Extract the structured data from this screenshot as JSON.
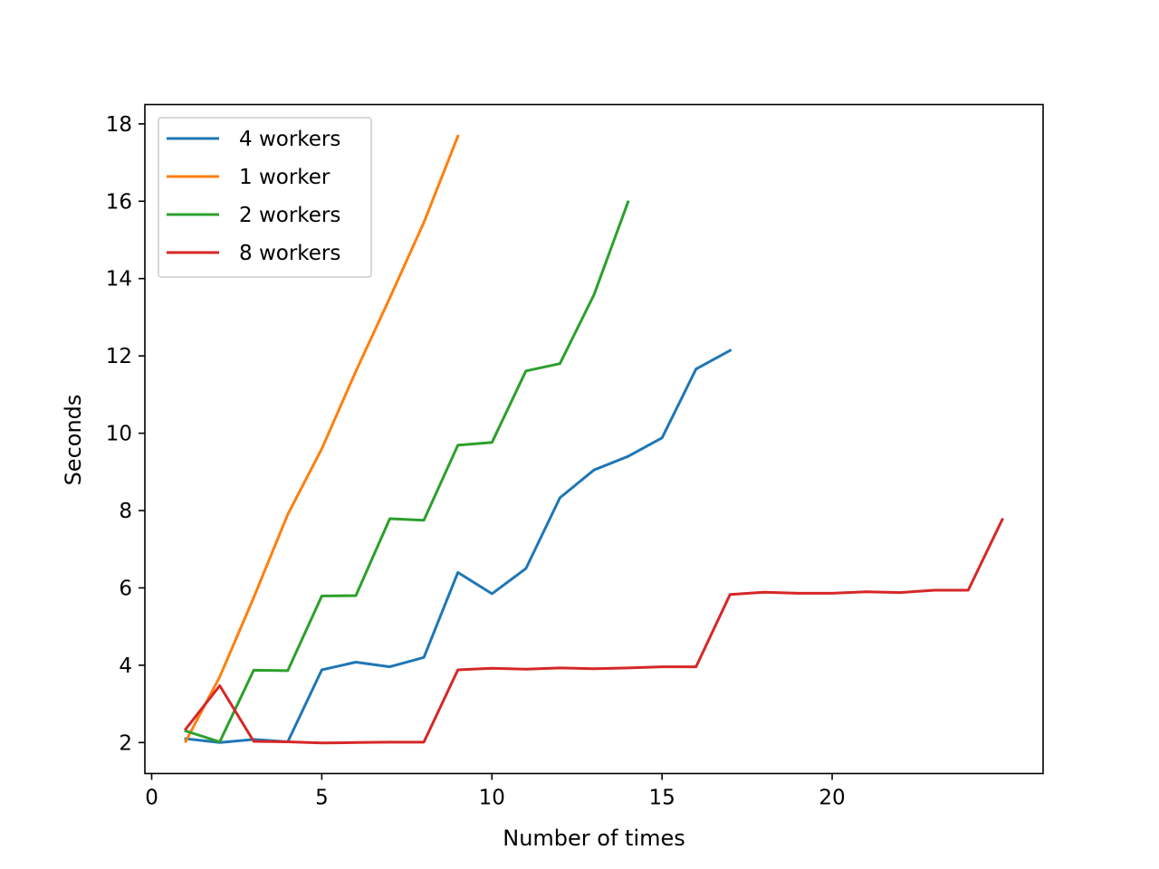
{
  "chart_data": {
    "type": "line",
    "title": "",
    "xlabel": "Number of times",
    "ylabel": "Seconds",
    "xlim": [
      -0.2,
      26.2
    ],
    "ylim": [
      1.2,
      18.5
    ],
    "xticks": [
      0,
      5,
      10,
      15,
      20
    ],
    "yticks": [
      2,
      4,
      6,
      8,
      10,
      12,
      14,
      16,
      18
    ],
    "grid": false,
    "legend_position": "upper-left",
    "series": [
      {
        "name": "4 workers",
        "color": "#1f77b4",
        "x": [
          1,
          2,
          3,
          4,
          5,
          6,
          7,
          8,
          9,
          10,
          11,
          12,
          13,
          14,
          15,
          16,
          17
        ],
        "y": [
          2.1,
          2.0,
          2.08,
          2.02,
          3.88,
          4.08,
          3.96,
          4.2,
          6.4,
          5.85,
          6.5,
          8.33,
          9.05,
          9.4,
          9.88,
          11.66,
          12.14
        ]
      },
      {
        "name": "1 worker",
        "color": "#ff7f0e",
        "x": [
          1,
          2,
          3,
          4,
          5,
          6,
          7,
          8,
          9
        ],
        "y": [
          2.03,
          3.7,
          5.75,
          7.9,
          9.6,
          11.6,
          13.5,
          15.45,
          17.68
        ]
      },
      {
        "name": "2 workers",
        "color": "#2ca02c",
        "x": [
          1,
          2,
          3,
          4,
          5,
          6,
          7,
          8,
          9,
          10,
          11,
          12,
          13,
          14
        ],
        "y": [
          2.3,
          2.02,
          3.87,
          3.86,
          5.79,
          5.8,
          7.79,
          7.75,
          9.69,
          9.76,
          11.61,
          11.8,
          13.58,
          15.98
        ]
      },
      {
        "name": "8 workers",
        "color": "#d62728",
        "x": [
          1,
          2,
          3,
          4,
          5,
          6,
          7,
          8,
          9,
          10,
          11,
          12,
          13,
          14,
          15,
          16,
          17,
          18,
          19,
          20,
          21,
          22,
          23,
          24,
          25
        ],
        "y": [
          2.35,
          3.47,
          2.03,
          2.02,
          1.99,
          2.0,
          2.01,
          2.01,
          3.88,
          3.92,
          3.9,
          3.93,
          3.91,
          3.93,
          3.96,
          3.96,
          5.83,
          5.89,
          5.86,
          5.86,
          5.9,
          5.88,
          5.94,
          5.94,
          7.77
        ]
      }
    ]
  }
}
